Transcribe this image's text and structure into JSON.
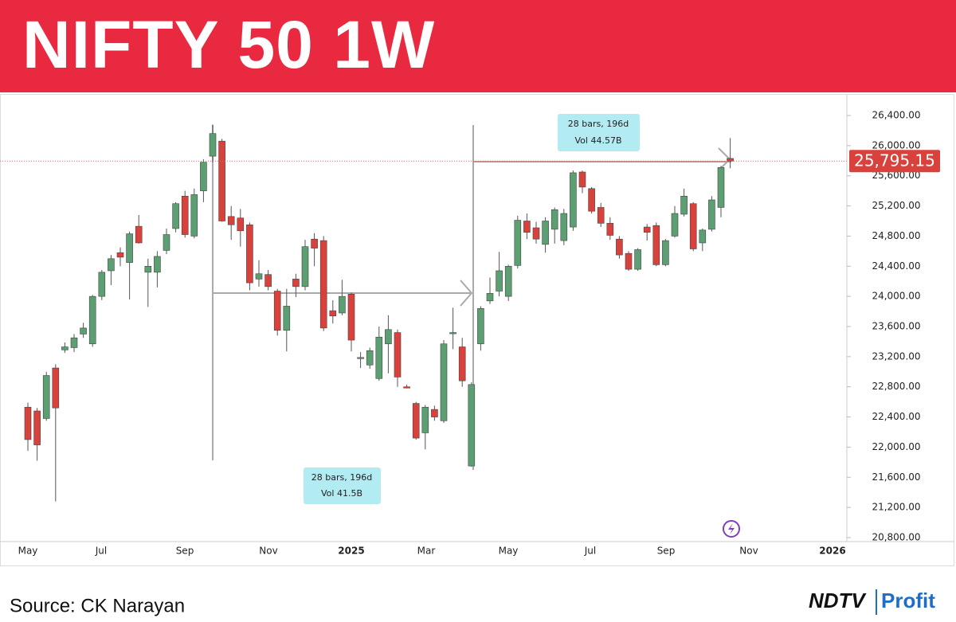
{
  "chart_data": {
    "type": "candlestick",
    "title": "NIFTY 50 1W",
    "open": [
      22530,
      22480,
      22380,
      23050,
      23290,
      23320,
      23500,
      23370,
      24000,
      24340,
      24580,
      24450,
      24930,
      24320,
      24320,
      24610,
      24900,
      25330,
      24800,
      25400,
      25860,
      26060,
      25060,
      25040,
      24950,
      24230,
      24290,
      24070,
      23550,
      24230,
      24130,
      24760,
      24740,
      23810,
      23780,
      24030,
      23180,
      23090,
      22910,
      23370,
      23520,
      22800,
      22580,
      22190,
      22500,
      22350,
      23520,
      23330,
      21750,
      23370,
      23940,
      24070,
      24000,
      24410,
      25000,
      24910,
      24690,
      24890,
      24740,
      24920,
      25650,
      25430,
      25180,
      24970,
      24760,
      24570,
      24360,
      24920,
      24940,
      24420,
      24800,
      25090,
      25230,
      24710,
      24890,
      25180,
      25830
    ],
    "high": [
      22590,
      22520,
      23000,
      23100,
      23390,
      23500,
      23650,
      24020,
      24350,
      24550,
      24650,
      24860,
      25080,
      24500,
      24600,
      24900,
      25250,
      25400,
      25430,
      25820,
      26280,
      26090,
      25200,
      25160,
      24980,
      24480,
      24350,
      24100,
      24100,
      24300,
      24750,
      24840,
      24800,
      23950,
      24220,
      24050,
      23260,
      23320,
      23600,
      23750,
      23560,
      22830,
      22600,
      22560,
      22550,
      23420,
      23850,
      23450,
      22860,
      23870,
      24250,
      24590,
      24420,
      25070,
      25100,
      24990,
      25050,
      25180,
      25160,
      25670,
      25670,
      25450,
      25240,
      25050,
      24800,
      24600,
      24640,
      24960,
      24980,
      24760,
      25200,
      25430,
      25250,
      24900,
      25330,
      25730,
      26100
    ],
    "low": [
      21950,
      21820,
      22350,
      21280,
      23250,
      23260,
      23450,
      23330,
      23950,
      24150,
      24400,
      23960,
      24700,
      23860,
      24120,
      24560,
      24850,
      24780,
      24770,
      25250,
      25780,
      24990,
      24750,
      24660,
      24080,
      24130,
      24080,
      23480,
      23270,
      23990,
      24080,
      24400,
      23540,
      23640,
      23750,
      23270,
      23050,
      23040,
      22880,
      22980,
      22800,
      22780,
      22100,
      21970,
      22350,
      22320,
      23300,
      22800,
      21740,
      23280,
      23900,
      24000,
      23940,
      24370,
      24760,
      24700,
      24580,
      24700,
      24680,
      24870,
      25370,
      25100,
      24920,
      24750,
      24500,
      24340,
      24340,
      24740,
      24400,
      24400,
      24780,
      25060,
      24600,
      24600,
      24860,
      25050,
      25700
    ],
    "close": [
      22100,
      22030,
      22950,
      22520,
      23330,
      23450,
      23580,
      24000,
      24320,
      24500,
      24520,
      24830,
      24710,
      24400,
      24530,
      24820,
      25230,
      24820,
      25350,
      25780,
      26160,
      25000,
      24950,
      24870,
      24180,
      24300,
      24130,
      23550,
      23870,
      24130,
      24660,
      24640,
      23580,
      23740,
      24000,
      23420,
      23190,
      23280,
      23460,
      23560,
      22930,
      22790,
      22120,
      22530,
      22400,
      23370,
      23520,
      22880,
      22830,
      23840,
      24040,
      24340,
      24400,
      25010,
      24850,
      24760,
      25000,
      25150,
      25100,
      25640,
      25450,
      25130,
      24970,
      24810,
      24550,
      24360,
      24620,
      24850,
      24420,
      24740,
      25100,
      25330,
      24630,
      24880,
      25280,
      25710,
      25795.15
    ],
    "up_color": "#5c9f72",
    "down_color": "#d9413c",
    "ylim": [
      20800,
      26400
    ],
    "yticks": [
      {
        "value": 20800,
        "label": "20,800.00"
      },
      {
        "value": 21200,
        "label": "21,200.00"
      },
      {
        "value": 21600,
        "label": "21,600.00"
      },
      {
        "value": 22000,
        "label": "22,000.00"
      },
      {
        "value": 22400,
        "label": "22,400.00"
      },
      {
        "value": 22800,
        "label": "22,800.00"
      },
      {
        "value": 23200,
        "label": "23,200.00"
      },
      {
        "value": 23600,
        "label": "23,600.00"
      },
      {
        "value": 24000,
        "label": "24,000.00"
      },
      {
        "value": 24400,
        "label": "24,400.00"
      },
      {
        "value": 24800,
        "label": "24,800.00"
      },
      {
        "value": 25200,
        "label": "25,200.00"
      },
      {
        "value": 25600,
        "label": "25,600.00"
      },
      {
        "value": 26000,
        "label": "26,000.00"
      },
      {
        "value": 26400,
        "label": "26,400.00"
      }
    ],
    "xticks": [
      "May",
      "Jul",
      "Sep",
      "Nov",
      "2025",
      "Mar",
      "May",
      "Jul",
      "Sep",
      "Nov",
      "2026"
    ],
    "price_label": {
      "value": 25795.15,
      "label": "25,795.15"
    },
    "annotations": [
      {
        "line1": "28 bars, 196d",
        "line2": "Vol 41.5B"
      },
      {
        "line1": "28 bars, 196d",
        "line2": "Vol 44.57B"
      }
    ]
  },
  "footer": {
    "source": "Source: CK Narayan",
    "logo_left": "NDTV",
    "logo_right": "Profit"
  }
}
